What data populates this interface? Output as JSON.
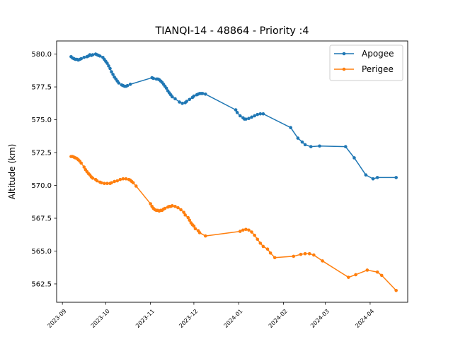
{
  "chart_data": {
    "type": "line",
    "title": "TIANQI-14 - 48864 - Priority :4",
    "xlabel": "",
    "ylabel": "Altitude (km)",
    "x_axis_type": "date",
    "xlim": [
      "2023-08-28",
      "2024-04-27"
    ],
    "ylim": [
      561.1,
      581.0
    ],
    "x_ticks": [
      "2023-09-01",
      "2023-10-01",
      "2023-11-01",
      "2023-12-01",
      "2024-01-01",
      "2024-02-01",
      "2024-03-01",
      "2024-04-01"
    ],
    "x_tick_labels": [
      "2023-09",
      "2023-10",
      "2023-11",
      "2023-12",
      "2024-01",
      "2024-02",
      "2024-03",
      "2024-04"
    ],
    "y_ticks": [
      562.5,
      565.0,
      567.5,
      570.0,
      572.5,
      575.0,
      577.5,
      580.0
    ],
    "y_tick_labels": [
      "562.5",
      "565.0",
      "567.5",
      "570.0",
      "572.5",
      "575.0",
      "577.5",
      "580.0"
    ],
    "legend_position": "top-right",
    "grid": false,
    "series": [
      {
        "name": "Apogee",
        "color": "#1f77b4",
        "points": [
          [
            "2023-09-07",
            579.8
          ],
          [
            "2023-09-08",
            579.7
          ],
          [
            "2023-09-09",
            579.65
          ],
          [
            "2023-09-10",
            579.6
          ],
          [
            "2023-09-11",
            579.6
          ],
          [
            "2023-09-12",
            579.55
          ],
          [
            "2023-09-13",
            579.6
          ],
          [
            "2023-09-14",
            579.65
          ],
          [
            "2023-09-16",
            579.75
          ],
          [
            "2023-09-18",
            579.8
          ],
          [
            "2023-09-19",
            579.85
          ],
          [
            "2023-09-20",
            579.95
          ],
          [
            "2023-09-21",
            579.9
          ],
          [
            "2023-09-22",
            579.95
          ],
          [
            "2023-09-24",
            580.0
          ],
          [
            "2023-09-25",
            579.95
          ],
          [
            "2023-09-26",
            579.9
          ],
          [
            "2023-09-27",
            579.85
          ],
          [
            "2023-09-29",
            579.75
          ],
          [
            "2023-09-30",
            579.6
          ],
          [
            "2023-10-01",
            579.45
          ],
          [
            "2023-10-02",
            579.3
          ],
          [
            "2023-10-03",
            579.1
          ],
          [
            "2023-10-04",
            578.9
          ],
          [
            "2023-10-05",
            578.65
          ],
          [
            "2023-10-06",
            578.45
          ],
          [
            "2023-10-07",
            578.25
          ],
          [
            "2023-10-08",
            578.1
          ],
          [
            "2023-10-09",
            577.95
          ],
          [
            "2023-10-10",
            577.8
          ],
          [
            "2023-10-12",
            577.65
          ],
          [
            "2023-10-13",
            577.6
          ],
          [
            "2023-10-14",
            577.55
          ],
          [
            "2023-10-15",
            577.55
          ],
          [
            "2023-10-16",
            577.6
          ],
          [
            "2023-10-18",
            577.7
          ],
          [
            "2023-11-02",
            578.2
          ],
          [
            "2023-11-03",
            578.15
          ],
          [
            "2023-11-05",
            578.1
          ],
          [
            "2023-11-06",
            578.1
          ],
          [
            "2023-11-07",
            578.05
          ],
          [
            "2023-11-08",
            577.95
          ],
          [
            "2023-11-09",
            577.85
          ],
          [
            "2023-11-10",
            577.7
          ],
          [
            "2023-11-11",
            577.55
          ],
          [
            "2023-11-12",
            577.4
          ],
          [
            "2023-11-13",
            577.2
          ],
          [
            "2023-11-14",
            577.05
          ],
          [
            "2023-11-15",
            576.9
          ],
          [
            "2023-11-16",
            576.75
          ],
          [
            "2023-11-18",
            576.6
          ],
          [
            "2023-11-21",
            576.35
          ],
          [
            "2023-11-23",
            576.25
          ],
          [
            "2023-11-25",
            576.3
          ],
          [
            "2023-11-26",
            576.4
          ],
          [
            "2023-11-28",
            576.55
          ],
          [
            "2023-11-30",
            576.7
          ],
          [
            "2023-12-01",
            576.8
          ],
          [
            "2023-12-03",
            576.9
          ],
          [
            "2023-12-04",
            576.95
          ],
          [
            "2023-12-05",
            577.0
          ],
          [
            "2023-12-06",
            577.0
          ],
          [
            "2023-12-07",
            577.0
          ],
          [
            "2023-12-09",
            576.95
          ],
          [
            "2023-12-30",
            575.75
          ],
          [
            "2023-12-31",
            575.55
          ],
          [
            "2024-01-02",
            575.3
          ],
          [
            "2024-01-04",
            575.15
          ],
          [
            "2024-01-05",
            575.05
          ],
          [
            "2024-01-06",
            575.05
          ],
          [
            "2024-01-08",
            575.1
          ],
          [
            "2024-01-10",
            575.2
          ],
          [
            "2024-01-12",
            575.3
          ],
          [
            "2024-01-14",
            575.4
          ],
          [
            "2024-01-16",
            575.45
          ],
          [
            "2024-01-18",
            575.45
          ],
          [
            "2024-02-06",
            574.4
          ],
          [
            "2024-02-11",
            573.6
          ],
          [
            "2024-02-14",
            573.3
          ],
          [
            "2024-02-16",
            573.1
          ],
          [
            "2024-02-20",
            572.95
          ],
          [
            "2024-02-26",
            573.0
          ],
          [
            "2024-03-15",
            572.95
          ],
          [
            "2024-03-21",
            572.1
          ],
          [
            "2024-03-29",
            570.8
          ],
          [
            "2024-04-03",
            570.5
          ],
          [
            "2024-04-06",
            570.6
          ],
          [
            "2024-04-19",
            570.6
          ]
        ]
      },
      {
        "name": "Perigee",
        "color": "#ff7f0e",
        "points": [
          [
            "2023-09-07",
            572.2
          ],
          [
            "2023-09-08",
            572.2
          ],
          [
            "2023-09-09",
            572.15
          ],
          [
            "2023-09-10",
            572.1
          ],
          [
            "2023-09-11",
            572.05
          ],
          [
            "2023-09-12",
            571.95
          ],
          [
            "2023-09-13",
            571.85
          ],
          [
            "2023-09-14",
            571.7
          ],
          [
            "2023-09-16",
            571.4
          ],
          [
            "2023-09-17",
            571.2
          ],
          [
            "2023-09-18",
            571.05
          ],
          [
            "2023-09-19",
            570.9
          ],
          [
            "2023-09-20",
            570.8
          ],
          [
            "2023-09-21",
            570.65
          ],
          [
            "2023-09-22",
            570.55
          ],
          [
            "2023-09-24",
            570.45
          ],
          [
            "2023-09-25",
            570.35
          ],
          [
            "2023-09-27",
            570.25
          ],
          [
            "2023-09-28",
            570.2
          ],
          [
            "2023-09-30",
            570.15
          ],
          [
            "2023-10-02",
            570.15
          ],
          [
            "2023-10-04",
            570.15
          ],
          [
            "2023-10-05",
            570.2
          ],
          [
            "2023-10-07",
            570.3
          ],
          [
            "2023-10-09",
            570.35
          ],
          [
            "2023-10-11",
            570.45
          ],
          [
            "2023-10-13",
            570.5
          ],
          [
            "2023-10-15",
            570.5
          ],
          [
            "2023-10-17",
            570.45
          ],
          [
            "2023-10-18",
            570.4
          ],
          [
            "2023-10-19",
            570.3
          ],
          [
            "2023-10-20",
            570.2
          ],
          [
            "2023-10-22",
            569.95
          ],
          [
            "2023-11-01",
            568.6
          ],
          [
            "2023-11-02",
            568.4
          ],
          [
            "2023-11-03",
            568.25
          ],
          [
            "2023-11-04",
            568.15
          ],
          [
            "2023-11-05",
            568.1
          ],
          [
            "2023-11-06",
            568.1
          ],
          [
            "2023-11-07",
            568.05
          ],
          [
            "2023-11-08",
            568.1
          ],
          [
            "2023-11-09",
            568.1
          ],
          [
            "2023-11-10",
            568.2
          ],
          [
            "2023-11-11",
            568.25
          ],
          [
            "2023-11-13",
            568.35
          ],
          [
            "2023-11-14",
            568.4
          ],
          [
            "2023-11-15",
            568.4
          ],
          [
            "2023-11-16",
            568.45
          ],
          [
            "2023-11-18",
            568.4
          ],
          [
            "2023-11-20",
            568.3
          ],
          [
            "2023-11-22",
            568.15
          ],
          [
            "2023-11-24",
            567.95
          ],
          [
            "2023-11-25",
            567.75
          ],
          [
            "2023-11-27",
            567.55
          ],
          [
            "2023-11-28",
            567.35
          ],
          [
            "2023-11-29",
            567.15
          ],
          [
            "2023-11-30",
            567.0
          ],
          [
            "2023-12-01",
            566.9
          ],
          [
            "2023-12-02",
            566.7
          ],
          [
            "2023-12-04",
            566.55
          ],
          [
            "2023-12-05",
            566.4
          ],
          [
            "2023-12-09",
            566.15
          ],
          [
            "2024-01-02",
            566.5
          ],
          [
            "2024-01-04",
            566.6
          ],
          [
            "2024-01-06",
            566.65
          ],
          [
            "2024-01-08",
            566.6
          ],
          [
            "2024-01-10",
            566.45
          ],
          [
            "2024-01-12",
            566.2
          ],
          [
            "2024-01-14",
            565.9
          ],
          [
            "2024-01-16",
            565.6
          ],
          [
            "2024-01-18",
            565.35
          ],
          [
            "2024-01-21",
            565.15
          ],
          [
            "2024-01-23",
            564.85
          ],
          [
            "2024-01-26",
            564.5
          ],
          [
            "2024-02-08",
            564.6
          ],
          [
            "2024-02-13",
            564.75
          ],
          [
            "2024-02-16",
            564.8
          ],
          [
            "2024-02-19",
            564.8
          ],
          [
            "2024-02-22",
            564.7
          ],
          [
            "2024-02-28",
            564.25
          ],
          [
            "2024-03-17",
            563.0
          ],
          [
            "2024-03-22",
            563.2
          ],
          [
            "2024-03-30",
            563.55
          ],
          [
            "2024-04-06",
            563.4
          ],
          [
            "2024-04-09",
            563.15
          ],
          [
            "2024-04-19",
            562.0
          ]
        ]
      }
    ]
  }
}
